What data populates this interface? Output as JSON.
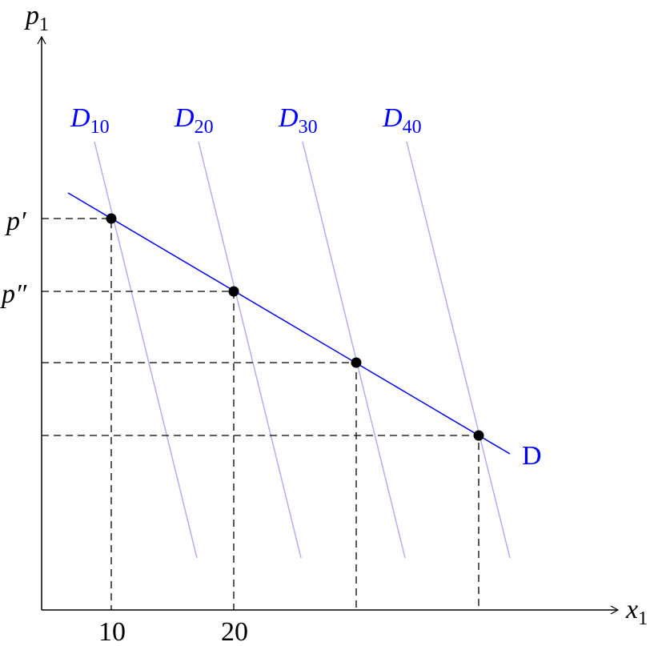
{
  "axes": {
    "y_label": {
      "base": "p",
      "sub": "1"
    },
    "x_label": {
      "base": "x",
      "sub": "1"
    }
  },
  "price_labels": [
    "p′",
    "p″"
  ],
  "quantity_labels": [
    "10",
    "20"
  ],
  "individual_demands": [
    {
      "base": "D",
      "sub": "10"
    },
    {
      "base": "D",
      "sub": "20"
    },
    {
      "base": "D",
      "sub": "30"
    },
    {
      "base": "D",
      "sub": "40"
    }
  ],
  "aggregate_demand": "D"
}
